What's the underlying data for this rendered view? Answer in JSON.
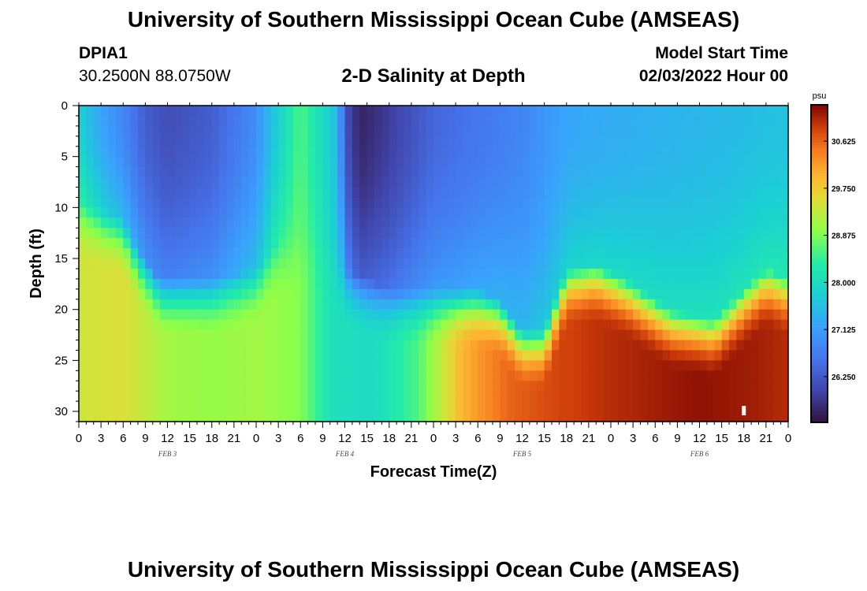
{
  "title": "University of Southern Mississippi Ocean Cube (AMSEAS)",
  "footer_title": "University of Southern Mississippi Ocean Cube (AMSEAS)",
  "station": {
    "id": "DPIA1",
    "coords": "30.2500N  88.0750W"
  },
  "subtitle": "2-D Salinity at Depth",
  "model_start": {
    "label": "Model Start Time",
    "value": "02/03/2022 Hour 00"
  },
  "chart_data": {
    "type": "heatmap",
    "title": "2-D Salinity at Depth",
    "xlabel": "Forecast Time(Z)",
    "ylabel": "Depth (ft)",
    "x_hours_range": [
      0,
      96
    ],
    "xlim": [
      0,
      96
    ],
    "ylim": [
      0,
      31
    ],
    "x_tick_hours": [
      0,
      3,
      6,
      9,
      12,
      15,
      18,
      21,
      24,
      27,
      30,
      33,
      36,
      39,
      42,
      45,
      48,
      51,
      54,
      57,
      60,
      63,
      66,
      69,
      72,
      75,
      78,
      81,
      84,
      87,
      90,
      93,
      96
    ],
    "x_tick_labels": [
      "0",
      "3",
      "6",
      "9",
      "12",
      "15",
      "18",
      "21",
      "0",
      "3",
      "6",
      "9",
      "12",
      "15",
      "18",
      "21",
      "0",
      "3",
      "6",
      "9",
      "12",
      "15",
      "18",
      "21",
      "0",
      "3",
      "6",
      "9",
      "12",
      "15",
      "18",
      "21",
      "0"
    ],
    "y_ticks": [
      0,
      5,
      10,
      15,
      20,
      25,
      30
    ],
    "y_tick_labels": [
      "0",
      "5",
      "10",
      "15",
      "20",
      "25",
      "30"
    ],
    "day_labels": [
      {
        "hour": 12,
        "text": "FEB 3"
      },
      {
        "hour": 36,
        "text": "FEB 4"
      },
      {
        "hour": 60,
        "text": "FEB 5"
      },
      {
        "hour": 84,
        "text": "FEB 6"
      }
    ],
    "colorbar": {
      "unit": "psu",
      "range": [
        25.4,
        31.3
      ],
      "ticks": [
        30.625,
        29.75,
        28.875,
        28.0,
        27.125,
        26.25
      ],
      "tick_labels": [
        "30.625",
        "29.750",
        "28.875",
        "28.000",
        "27.125",
        "26.250"
      ]
    },
    "surface_salinity_by_hour": [
      [
        0,
        27.8
      ],
      [
        3,
        27.2
      ],
      [
        6,
        26.8
      ],
      [
        9,
        26.3
      ],
      [
        12,
        26.1
      ],
      [
        18,
        26.3
      ],
      [
        24,
        26.9
      ],
      [
        27,
        27.8
      ],
      [
        30,
        28.6
      ],
      [
        32,
        28.2
      ],
      [
        35,
        27.5
      ],
      [
        36,
        26.2
      ],
      [
        38,
        25.6
      ],
      [
        42,
        25.9
      ],
      [
        48,
        26.4
      ],
      [
        54,
        26.6
      ],
      [
        60,
        26.8
      ],
      [
        66,
        27.2
      ],
      [
        72,
        27.3
      ],
      [
        80,
        27.4
      ],
      [
        90,
        27.5
      ],
      [
        96,
        27.6
      ]
    ],
    "bottom_salinity_by_hour": [
      [
        0,
        29.4
      ],
      [
        6,
        29.5
      ],
      [
        12,
        29.1
      ],
      [
        18,
        29.0
      ],
      [
        24,
        29.1
      ],
      [
        30,
        28.9
      ],
      [
        34,
        28.1
      ],
      [
        40,
        28.0
      ],
      [
        46,
        28.6
      ],
      [
        52,
        30.0
      ],
      [
        58,
        30.6
      ],
      [
        64,
        30.8
      ],
      [
        72,
        31.0
      ],
      [
        84,
        31.2
      ],
      [
        92,
        31.1
      ],
      [
        96,
        31.0
      ]
    ],
    "halocline_depth_ft_by_hour": [
      [
        0,
        9.5
      ],
      [
        6,
        11
      ],
      [
        8,
        14
      ],
      [
        11,
        17
      ],
      [
        18,
        17
      ],
      [
        24,
        16
      ],
      [
        26,
        14
      ],
      [
        30,
        13
      ],
      [
        33,
        13
      ],
      [
        36,
        16
      ],
      [
        42,
        18
      ],
      [
        48,
        18
      ],
      [
        54,
        18
      ],
      [
        57,
        19
      ],
      [
        60,
        22
      ],
      [
        63,
        22
      ],
      [
        66,
        16
      ],
      [
        70,
        15.5
      ],
      [
        74,
        17
      ],
      [
        80,
        20
      ],
      [
        86,
        21
      ],
      [
        90,
        18
      ],
      [
        93,
        16
      ],
      [
        96,
        17
      ]
    ],
    "marker": {
      "hour": 90,
      "depth_ft": 30
    }
  }
}
